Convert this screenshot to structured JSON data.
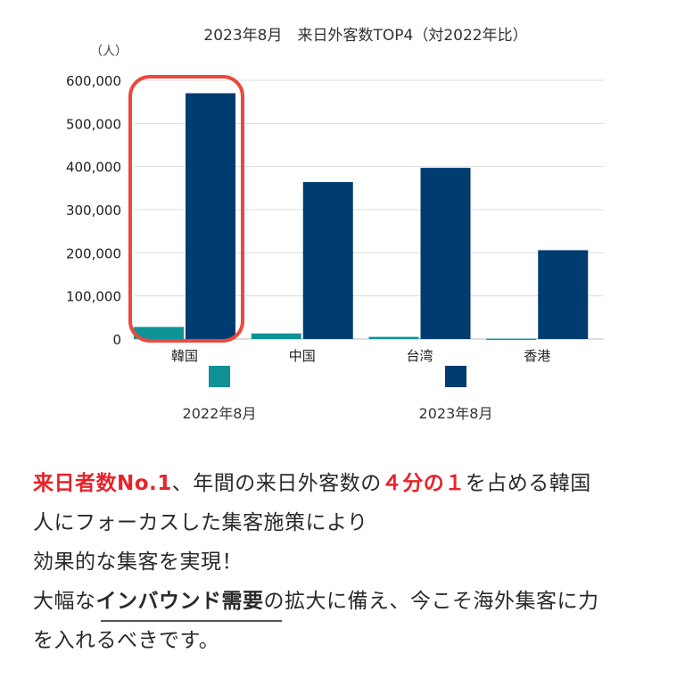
{
  "chart_data": {
    "type": "bar",
    "title": "2023年8月　来日外客数TOP4（対2022年比）",
    "unit_label": "（人）",
    "categories": [
      "韓国",
      "中国",
      "台湾",
      "香港"
    ],
    "series": [
      {
        "name": "2022年8月",
        "color": "#0e9296",
        "values": [
          28000,
          13000,
          5000,
          1000
        ]
      },
      {
        "name": "2023年8月",
        "color": "#003c70",
        "values": [
          570000,
          364000,
          397000,
          206000
        ]
      }
    ],
    "y_ticks": [
      "0",
      "100,000",
      "200,000",
      "300,000",
      "400,000",
      "500,000",
      "600,000"
    ],
    "ylim": [
      0,
      600000
    ],
    "grid": true,
    "highlight_category": "韓国",
    "highlight_color": "#e84a3f"
  },
  "copy": {
    "line1_red1": "来日者数No.1",
    "line1_text1": "、年間の来日外客数の",
    "line1_red2": "４分の１",
    "line1_text2": "を占める韓国",
    "line2": "人にフォーカスした集客施策により",
    "line3": "効果的な集客を実現！",
    "line4_text1": "大幅な",
    "line4_bold": "インバウンド需要",
    "line4_text2": "の拡大に備え、今こそ海外集客に力",
    "line5": "を入れるべきです。"
  }
}
